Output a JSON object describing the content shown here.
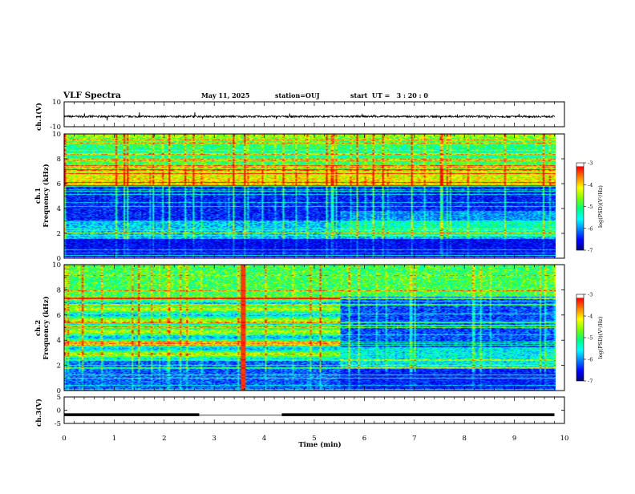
{
  "header": {
    "title": "VLF Spectra",
    "date": "May 11, 2025",
    "station": "station=OUJ",
    "start_ut": "start  UT =   3 : 20 : 0"
  },
  "chart_data": [
    {
      "type": "line",
      "panel": "ch1-waveform",
      "ylabel": "ch.1(V)",
      "ylim": [
        -10,
        10
      ],
      "y_ticks": [
        "10",
        "-10"
      ],
      "xlim": [
        0,
        10
      ],
      "series_color": "#000000",
      "baseline_v": -1.8,
      "amplitude_v": 1.5
    },
    {
      "type": "heatmap",
      "panel": "ch1-spectrogram",
      "ylabel": "ch.1\nFrequency (kHz)",
      "ylabel_lines": [
        "ch.1",
        "Frequency (kHz)"
      ],
      "y_ticks": [
        "0",
        "2",
        "4",
        "6",
        "8",
        "10"
      ],
      "ylim": [
        0,
        10
      ],
      "xlim": [
        0,
        9.8
      ],
      "colorbar": {
        "label": "log(PSD)(V²/Hz)",
        "ticks": [
          "-3",
          "-4",
          "-5",
          "-6",
          "-7"
        ],
        "range": [
          -7,
          -3
        ]
      },
      "features": {
        "low_band_khz": [
          0,
          5.8
        ],
        "bright_band_khz": [
          5.8,
          10
        ],
        "transition_min": 5.5
      }
    },
    {
      "type": "heatmap",
      "panel": "ch2-spectrogram",
      "ylabel": "ch.2\nFrequency (kHz)",
      "ylabel_lines": [
        "ch.2",
        "Frequency (kHz)"
      ],
      "y_ticks": [
        "0",
        "2",
        "4",
        "6",
        "8",
        "10"
      ],
      "ylim": [
        0,
        10
      ],
      "xlim": [
        0,
        9.8
      ],
      "colorbar": {
        "label": "log(PSD)(V²/Hz)",
        "ticks": [
          "-3",
          "-4",
          "-5",
          "-6",
          "-7"
        ],
        "range": [
          -7,
          -3
        ]
      },
      "features": {
        "transition_min": 5.5,
        "spike_min": 3.55
      }
    },
    {
      "type": "line",
      "panel": "ch3-signal",
      "ylabel": "ch.3(V)",
      "ylim": [
        -5,
        5
      ],
      "y_ticks": [
        "5",
        "0",
        "-5"
      ],
      "xlim": [
        0,
        10
      ],
      "series_color": "#000000",
      "segments": [
        {
          "x": [
            0.0,
            2.7
          ],
          "y": -1.7
        },
        {
          "x": [
            2.7,
            4.35
          ],
          "y": -1.9
        },
        {
          "x": [
            4.35,
            9.8
          ],
          "y": -1.7
        }
      ]
    }
  ],
  "x_axis": {
    "label": "Time (min)",
    "ticks": [
      "0",
      "1",
      "2",
      "3",
      "4",
      "5",
      "6",
      "7",
      "8",
      "9",
      "10"
    ],
    "range": [
      0,
      10
    ]
  },
  "colormap": [
    "#000080",
    "#0000ff",
    "#0080ff",
    "#00ffff",
    "#00ff80",
    "#80ff00",
    "#ffff00",
    "#ff8000",
    "#ff0000",
    "#ffffff"
  ]
}
